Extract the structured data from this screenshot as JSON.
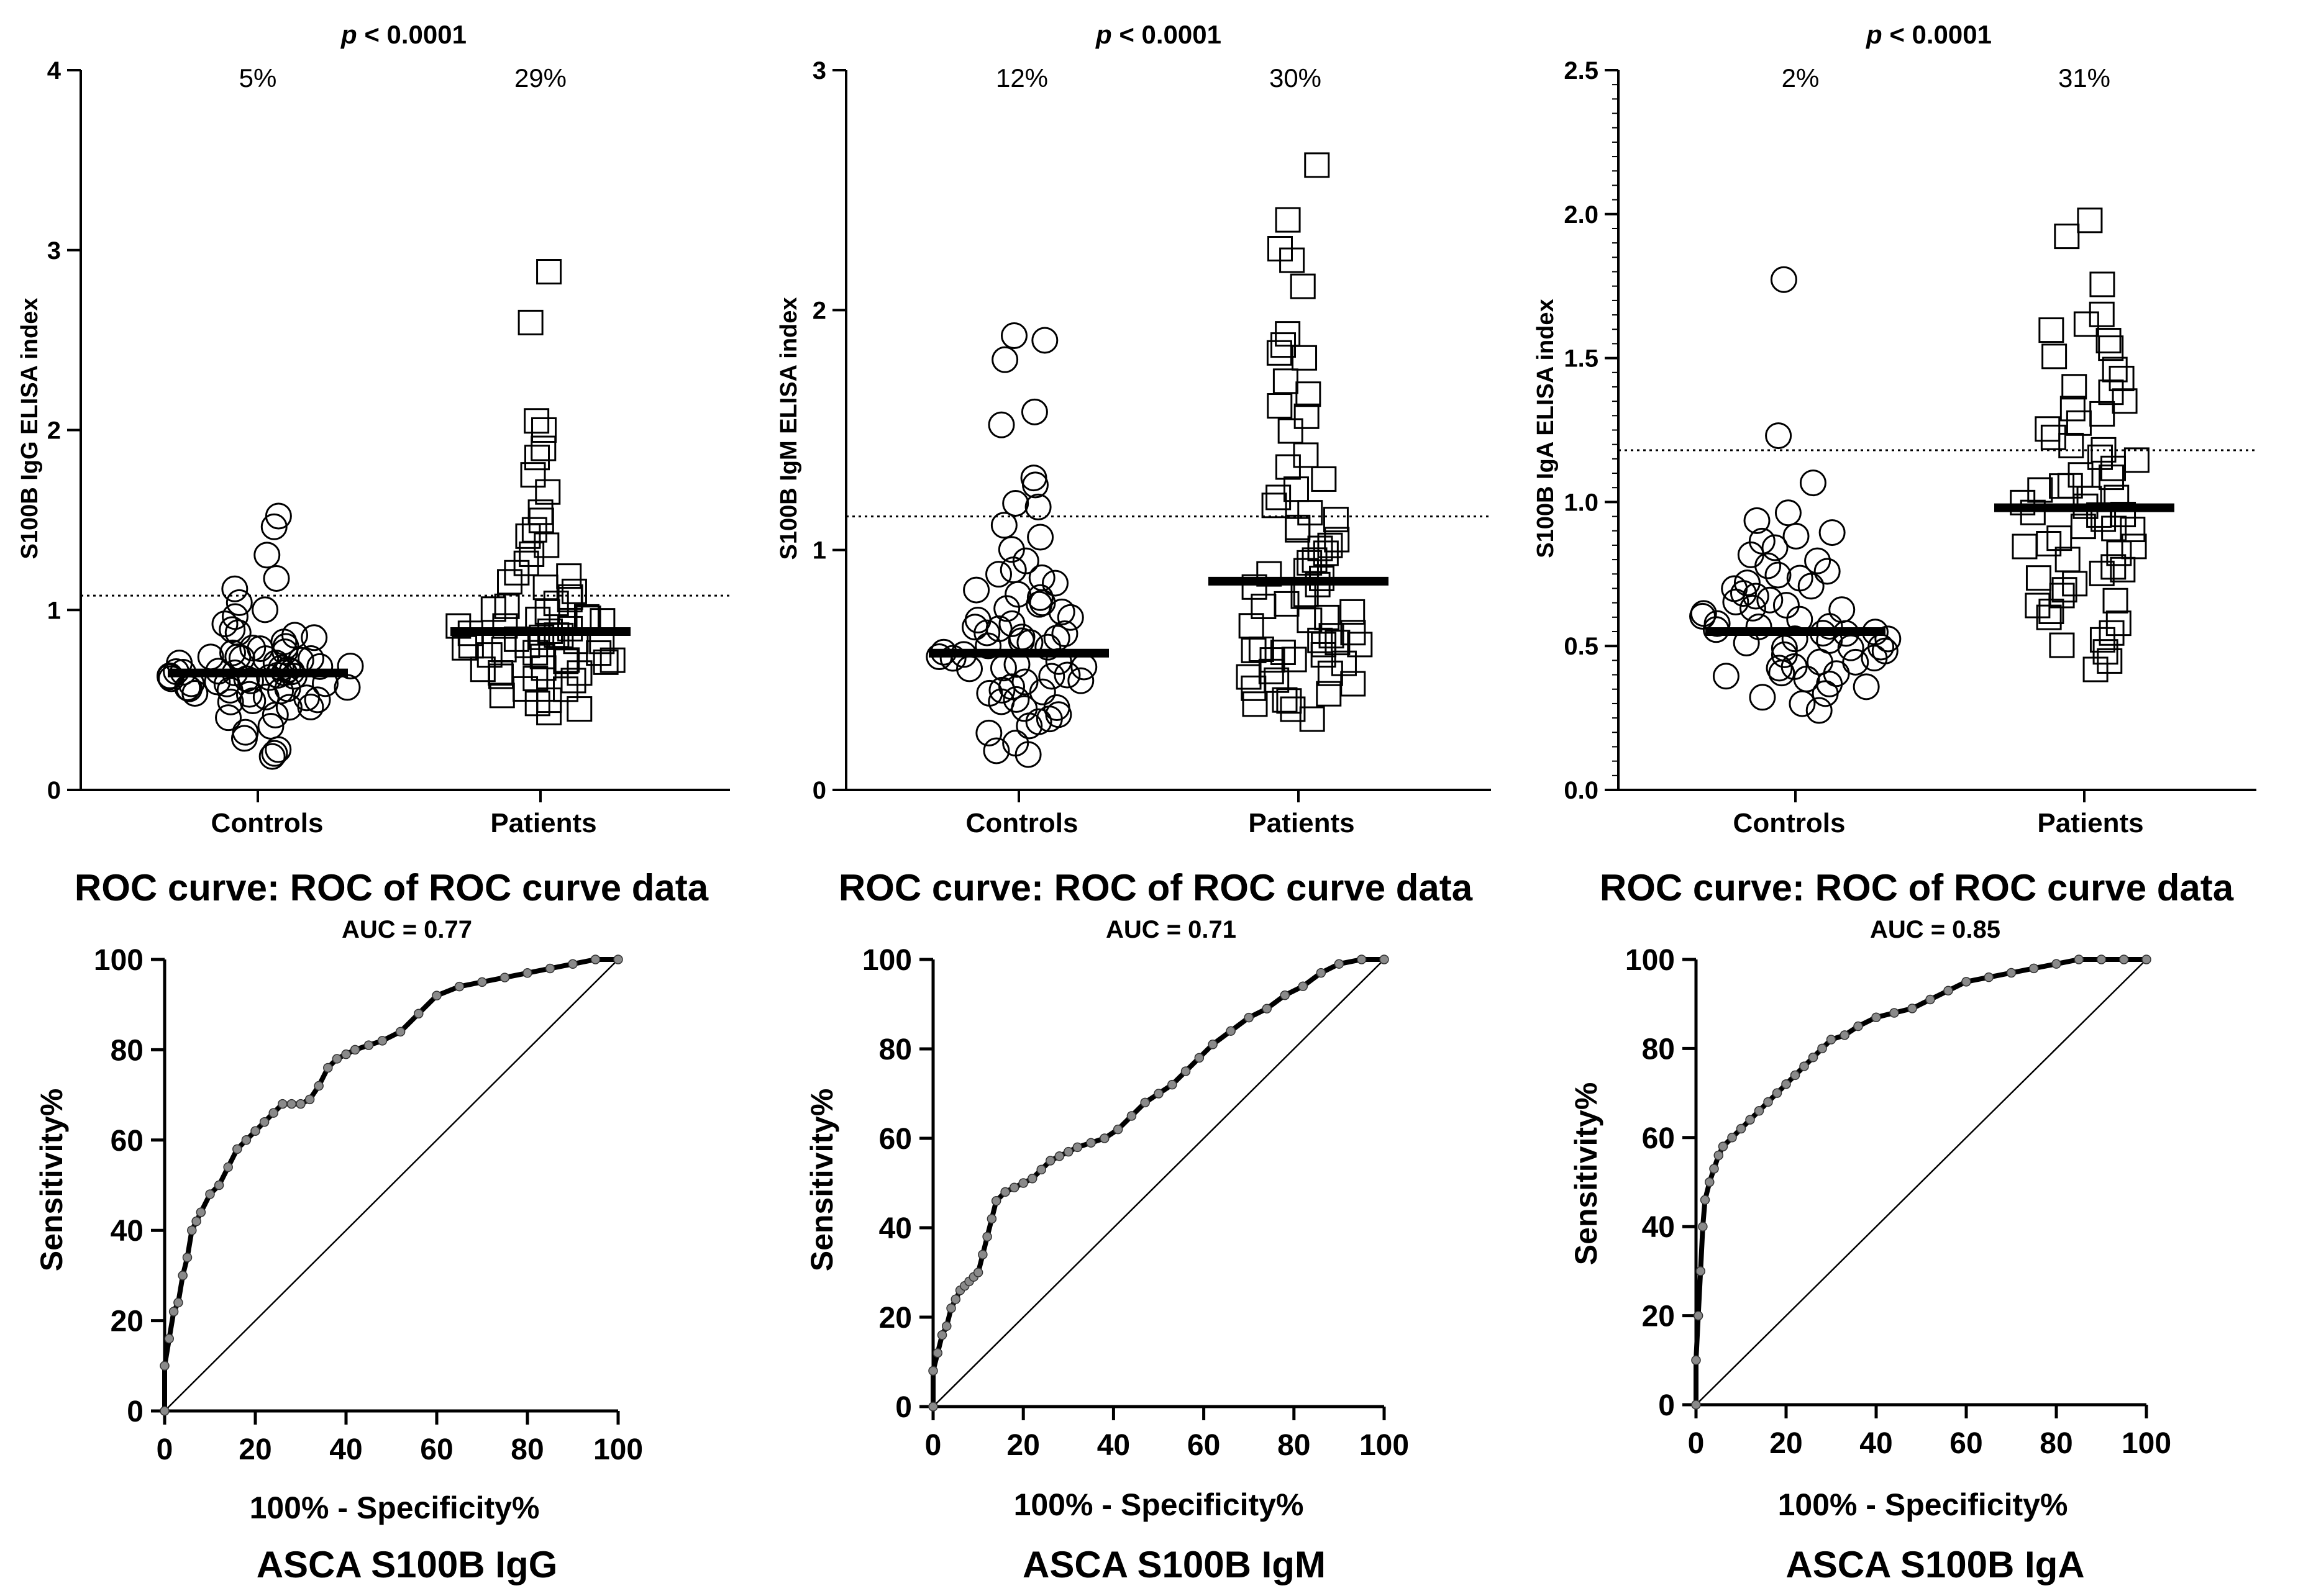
{
  "chart_data": [
    {
      "type": "scatter",
      "title": "p < 0.0001",
      "title_parts": [
        "p",
        "< 0.0001"
      ],
      "ylabel": "S100B IgG ELISA index",
      "ylim": [
        0,
        4
      ],
      "yticks": [
        0,
        1,
        2,
        3,
        4
      ],
      "ytick_labels": [
        "0",
        "1",
        "2",
        "3",
        "4"
      ],
      "categories": [
        "Controls",
        "Patients"
      ],
      "positive_percent": [
        "5%",
        "29%"
      ],
      "cutoff": 1.08,
      "medians": [
        0.65,
        0.88
      ],
      "controls": [
        0.18,
        0.2,
        0.22,
        0.28,
        0.32,
        0.36,
        0.4,
        0.42,
        0.45,
        0.47,
        0.48,
        0.5,
        0.5,
        0.51,
        0.52,
        0.53,
        0.54,
        0.55,
        0.55,
        0.56,
        0.57,
        0.57,
        0.58,
        0.58,
        0.59,
        0.6,
        0.6,
        0.61,
        0.61,
        0.62,
        0.62,
        0.63,
        0.63,
        0.64,
        0.64,
        0.65,
        0.65,
        0.65,
        0.66,
        0.66,
        0.67,
        0.67,
        0.68,
        0.68,
        0.69,
        0.7,
        0.7,
        0.71,
        0.72,
        0.72,
        0.73,
        0.74,
        0.75,
        0.76,
        0.77,
        0.78,
        0.79,
        0.8,
        0.82,
        0.84,
        0.86,
        0.88,
        0.9,
        0.93,
        0.96,
        1.0,
        1.05,
        1.12,
        1.18,
        1.3,
        1.46,
        1.52
      ],
      "patients": [
        0.42,
        0.45,
        0.48,
        0.5,
        0.52,
        0.55,
        0.57,
        0.6,
        0.62,
        0.63,
        0.65,
        0.66,
        0.67,
        0.68,
        0.7,
        0.71,
        0.72,
        0.73,
        0.74,
        0.75,
        0.76,
        0.77,
        0.78,
        0.79,
        0.8,
        0.81,
        0.82,
        0.83,
        0.84,
        0.85,
        0.86,
        0.87,
        0.88,
        0.89,
        0.9,
        0.91,
        0.92,
        0.93,
        0.94,
        0.95,
        0.96,
        0.98,
        1.0,
        1.02,
        1.04,
        1.06,
        1.08,
        1.1,
        1.12,
        1.15,
        1.18,
        1.2,
        1.25,
        1.3,
        1.35,
        1.4,
        1.45,
        1.5,
        1.55,
        1.65,
        1.75,
        1.85,
        1.9,
        2.0,
        2.05,
        2.6,
        2.88
      ]
    },
    {
      "type": "scatter",
      "title": "p < 0.0001",
      "title_parts": [
        "p",
        "< 0.0001"
      ],
      "ylabel": "S100B IgM ELISA index",
      "ylim": [
        0,
        3
      ],
      "yticks": [
        0,
        1,
        2,
        3
      ],
      "ytick_labels": [
        "0",
        "1",
        "2",
        "3"
      ],
      "categories": [
        "Controls",
        "Patients"
      ],
      "positive_percent": [
        "12%",
        "30%"
      ],
      "cutoff": 1.14,
      "medians": [
        0.57,
        0.87
      ],
      "controls": [
        0.14,
        0.17,
        0.2,
        0.23,
        0.26,
        0.28,
        0.3,
        0.32,
        0.34,
        0.35,
        0.37,
        0.38,
        0.4,
        0.41,
        0.42,
        0.43,
        0.45,
        0.46,
        0.47,
        0.48,
        0.5,
        0.51,
        0.52,
        0.53,
        0.54,
        0.55,
        0.56,
        0.57,
        0.58,
        0.59,
        0.6,
        0.61,
        0.62,
        0.63,
        0.64,
        0.65,
        0.66,
        0.67,
        0.68,
        0.7,
        0.71,
        0.72,
        0.74,
        0.75,
        0.77,
        0.78,
        0.8,
        0.82,
        0.84,
        0.86,
        0.88,
        0.9,
        0.92,
        0.95,
        1.0,
        1.05,
        1.1,
        1.18,
        1.2,
        1.27,
        1.3,
        1.52,
        1.58,
        1.8,
        1.88,
        1.9
      ],
      "patients": [
        0.3,
        0.33,
        0.35,
        0.37,
        0.38,
        0.4,
        0.42,
        0.44,
        0.45,
        0.47,
        0.48,
        0.5,
        0.52,
        0.54,
        0.55,
        0.56,
        0.57,
        0.58,
        0.59,
        0.6,
        0.61,
        0.62,
        0.63,
        0.65,
        0.66,
        0.68,
        0.7,
        0.72,
        0.74,
        0.76,
        0.78,
        0.8,
        0.82,
        0.84,
        0.86,
        0.88,
        0.9,
        0.92,
        0.94,
        0.96,
        0.98,
        1.0,
        1.02,
        1.05,
        1.08,
        1.1,
        1.12,
        1.15,
        1.18,
        1.22,
        1.25,
        1.3,
        1.35,
        1.4,
        1.5,
        1.55,
        1.6,
        1.65,
        1.7,
        1.8,
        1.82,
        1.85,
        1.9,
        2.1,
        2.2,
        2.25,
        2.38,
        2.6
      ]
    },
    {
      "type": "scatter",
      "title": "p < 0.0001",
      "title_parts": [
        "p",
        "< 0.0001"
      ],
      "ylabel": "S100B IgA ELISA index",
      "ylim": [
        0,
        2.5
      ],
      "yticks": [
        0,
        0.5,
        1,
        1.5,
        2,
        2.5
      ],
      "ytick_labels": [
        "0.0",
        "0.5",
        "1.0",
        "1.5",
        "2.0",
        "2.5"
      ],
      "categories": [
        "Controls",
        "Patients"
      ],
      "positive_percent": [
        "2%",
        "31%"
      ],
      "cutoff": 1.18,
      "medians": [
        0.55,
        0.98
      ],
      "controls": [
        0.28,
        0.3,
        0.32,
        0.34,
        0.36,
        0.37,
        0.38,
        0.39,
        0.4,
        0.41,
        0.42,
        0.43,
        0.44,
        0.45,
        0.46,
        0.47,
        0.48,
        0.49,
        0.5,
        0.5,
        0.51,
        0.52,
        0.53,
        0.53,
        0.54,
        0.55,
        0.55,
        0.56,
        0.57,
        0.57,
        0.58,
        0.59,
        0.6,
        0.61,
        0.62,
        0.63,
        0.64,
        0.65,
        0.66,
        0.67,
        0.68,
        0.7,
        0.71,
        0.72,
        0.74,
        0.75,
        0.76,
        0.78,
        0.8,
        0.82,
        0.84,
        0.86,
        0.88,
        0.9,
        0.93,
        0.96,
        1.06,
        1.23,
        1.77
      ],
      "patients": [
        0.42,
        0.45,
        0.48,
        0.5,
        0.52,
        0.55,
        0.58,
        0.6,
        0.62,
        0.64,
        0.66,
        0.68,
        0.7,
        0.72,
        0.74,
        0.75,
        0.76,
        0.78,
        0.8,
        0.82,
        0.84,
        0.85,
        0.86,
        0.88,
        0.9,
        0.91,
        0.92,
        0.94,
        0.95,
        0.96,
        0.97,
        0.98,
        1.0,
        1.01,
        1.02,
        1.04,
        1.05,
        1.06,
        1.08,
        1.1,
        1.12,
        1.14,
        1.16,
        1.18,
        1.2,
        1.22,
        1.25,
        1.28,
        1.3,
        1.33,
        1.35,
        1.38,
        1.4,
        1.43,
        1.46,
        1.5,
        1.53,
        1.56,
        1.6,
        1.62,
        1.65,
        1.76,
        1.92,
        1.98
      ]
    },
    {
      "type": "line",
      "title": "ROC curve: ROC of ROC curve data",
      "subtitle": "AUC = 0.77",
      "xlabel": "100% - Specificity%",
      "ylabel": "Sensitivity%",
      "caption": "ASCA S100B IgG",
      "xlim": [
        0,
        100
      ],
      "ylim": [
        0,
        100
      ],
      "xticks": [
        0,
        20,
        40,
        60,
        80,
        100
      ],
      "yticks": [
        0,
        20,
        40,
        60,
        80,
        100
      ],
      "x": [
        0,
        0,
        1,
        2,
        3,
        4,
        5,
        6,
        7,
        8,
        10,
        12,
        14,
        16,
        18,
        20,
        22,
        24,
        26,
        28,
        30,
        32,
        34,
        36,
        38,
        40,
        42,
        45,
        48,
        52,
        56,
        60,
        65,
        70,
        75,
        80,
        85,
        90,
        95,
        100
      ],
      "y": [
        0,
        10,
        16,
        22,
        24,
        30,
        34,
        40,
        42,
        44,
        48,
        50,
        54,
        58,
        60,
        62,
        64,
        66,
        68,
        68,
        68,
        69,
        72,
        76,
        78,
        79,
        80,
        81,
        82,
        84,
        88,
        92,
        94,
        95,
        96,
        97,
        98,
        99,
        100,
        100
      ]
    },
    {
      "type": "line",
      "title": "ROC curve: ROC of ROC curve data",
      "subtitle": "AUC = 0.71",
      "xlabel": "100% - Specificity%",
      "ylabel": "Sensitivity%",
      "caption": "ASCA S100B IgM",
      "xlim": [
        0,
        100
      ],
      "ylim": [
        0,
        100
      ],
      "xticks": [
        0,
        20,
        40,
        60,
        80,
        100
      ],
      "yticks": [
        0,
        20,
        40,
        60,
        80,
        100
      ],
      "x": [
        0,
        0,
        1,
        2,
        3,
        4,
        5,
        6,
        7,
        8,
        9,
        10,
        11,
        12,
        13,
        14,
        16,
        18,
        20,
        22,
        24,
        26,
        28,
        30,
        32,
        35,
        38,
        41,
        44,
        47,
        50,
        53,
        56,
        59,
        62,
        66,
        70,
        74,
        78,
        82,
        86,
        90,
        95,
        100
      ],
      "y": [
        0,
        8,
        12,
        16,
        18,
        22,
        24,
        26,
        27,
        28,
        29,
        30,
        34,
        38,
        42,
        46,
        48,
        49,
        50,
        51,
        53,
        55,
        56,
        57,
        58,
        59,
        60,
        62,
        65,
        68,
        70,
        72,
        75,
        78,
        81,
        84,
        87,
        89,
        92,
        94,
        97,
        99,
        100,
        100
      ]
    },
    {
      "type": "line",
      "title": "ROC curve: ROC of ROC curve data",
      "subtitle": "AUC = 0.85",
      "xlabel": "100% - Specificity%",
      "ylabel": "Sensitivity%",
      "caption": "ASCA S100B IgA",
      "xlim": [
        0,
        100
      ],
      "ylim": [
        0,
        100
      ],
      "xticks": [
        0,
        20,
        40,
        60,
        80,
        100
      ],
      "yticks": [
        0,
        20,
        40,
        60,
        80,
        100
      ],
      "x": [
        0,
        0,
        0.5,
        1,
        1.5,
        2,
        3,
        4,
        5,
        6,
        8,
        10,
        12,
        14,
        16,
        18,
        20,
        22,
        24,
        26,
        28,
        30,
        33,
        36,
        40,
        44,
        48,
        52,
        56,
        60,
        65,
        70,
        75,
        80,
        85,
        90,
        95,
        100
      ],
      "y": [
        0,
        10,
        20,
        30,
        40,
        46,
        50,
        53,
        56,
        58,
        60,
        62,
        64,
        66,
        68,
        70,
        72,
        74,
        76,
        78,
        80,
        82,
        83,
        85,
        87,
        88,
        89,
        91,
        93,
        95,
        96,
        97,
        98,
        99,
        100,
        100,
        100,
        100
      ]
    }
  ]
}
